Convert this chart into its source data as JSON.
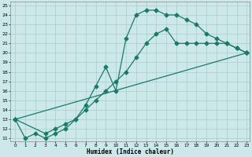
{
  "xlabel": "Humidex (Indice chaleur)",
  "bg_color": "#cce8e8",
  "grid_color": "#aacccc",
  "line_color": "#1a7a6a",
  "xlim": [
    -0.5,
    23.3
  ],
  "ylim": [
    10.7,
    25.4
  ],
  "xticks": [
    0,
    1,
    2,
    3,
    4,
    5,
    6,
    7,
    8,
    9,
    10,
    11,
    12,
    13,
    14,
    15,
    16,
    17,
    18,
    19,
    20,
    21,
    22,
    23
  ],
  "yticks": [
    11,
    12,
    13,
    14,
    15,
    16,
    17,
    18,
    19,
    20,
    21,
    22,
    23,
    24,
    25
  ],
  "line1_x": [
    0,
    1,
    2,
    3,
    4,
    5,
    6,
    7,
    8,
    9,
    10,
    11,
    12,
    13,
    14,
    15,
    16,
    17,
    18,
    19,
    20,
    21,
    22,
    23
  ],
  "line1_y": [
    13,
    11,
    11.5,
    11,
    11.5,
    12,
    13,
    14.5,
    16.5,
    18.5,
    16,
    21.5,
    24,
    24.5,
    24.5,
    24,
    24,
    23.5,
    23,
    22,
    21.5,
    21,
    20.5,
    20
  ],
  "line2_x": [
    0,
    3,
    4,
    5,
    6,
    7,
    8,
    9,
    10,
    11,
    12,
    13,
    14,
    15,
    16,
    17,
    18,
    19,
    20,
    21,
    22,
    23
  ],
  "line2_y": [
    13,
    11.5,
    12,
    12.5,
    13,
    14,
    15,
    16,
    17,
    18,
    19.5,
    21,
    22,
    22.5,
    21,
    21,
    21,
    21,
    21,
    21,
    20.5,
    20
  ],
  "line3_x": [
    0,
    23
  ],
  "line3_y": [
    13,
    20
  ]
}
